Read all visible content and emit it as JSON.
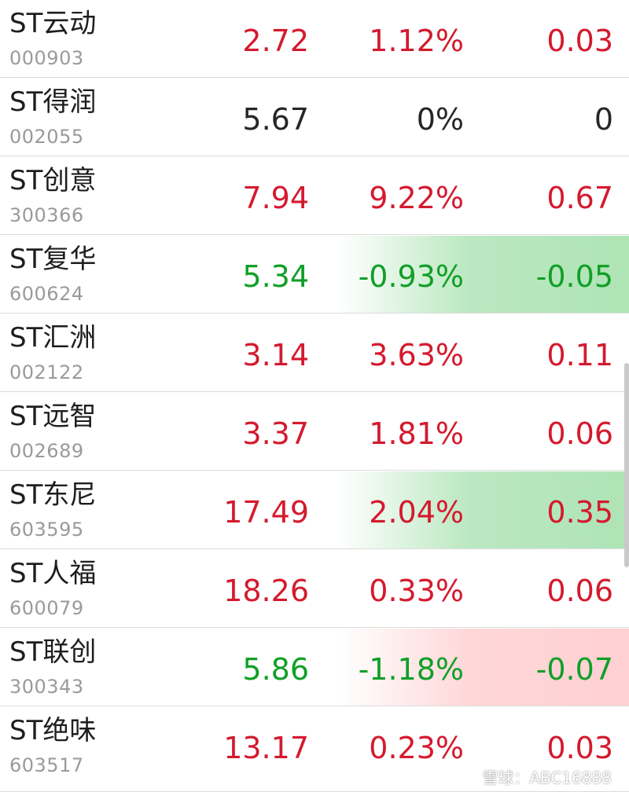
{
  "colors": {
    "up": "#d41a2e",
    "down": "#119f27",
    "flat": "#262626",
    "code": "#9a9a9a",
    "flash_green": "#aee3b6",
    "flash_red": "#ffd0d2"
  },
  "stocks": [
    {
      "name": "ST云动",
      "code": "000903",
      "price": "2.72",
      "pct": "1.12%",
      "chg": "0.03",
      "trend": "up",
      "flash": "none"
    },
    {
      "name": "ST得润",
      "code": "002055",
      "price": "5.67",
      "pct": "0%",
      "chg": "0",
      "trend": "flat",
      "flash": "none"
    },
    {
      "name": "ST创意",
      "code": "300366",
      "price": "7.94",
      "pct": "9.22%",
      "chg": "0.67",
      "trend": "up",
      "flash": "none"
    },
    {
      "name": "ST复华",
      "code": "600624",
      "price": "5.34",
      "pct": "-0.93%",
      "chg": "-0.05",
      "trend": "down",
      "flash": "green"
    },
    {
      "name": "ST汇洲",
      "code": "002122",
      "price": "3.14",
      "pct": "3.63%",
      "chg": "0.11",
      "trend": "up",
      "flash": "none"
    },
    {
      "name": "ST远智",
      "code": "002689",
      "price": "3.37",
      "pct": "1.81%",
      "chg": "0.06",
      "trend": "up",
      "flash": "none"
    },
    {
      "name": "ST东尼",
      "code": "603595",
      "price": "17.49",
      "pct": "2.04%",
      "chg": "0.35",
      "trend": "up",
      "flash": "green"
    },
    {
      "name": "ST人福",
      "code": "600079",
      "price": "18.26",
      "pct": "0.33%",
      "chg": "0.06",
      "trend": "up",
      "flash": "none"
    },
    {
      "name": "ST联创",
      "code": "300343",
      "price": "5.86",
      "pct": "-1.18%",
      "chg": "-0.07",
      "trend": "down",
      "flash": "red"
    },
    {
      "name": "ST绝味",
      "code": "603517",
      "price": "13.17",
      "pct": "0.23%",
      "chg": "0.03",
      "trend": "up",
      "flash": "none"
    }
  ],
  "watermark": {
    "text": "雪球：ABC16888",
    "icon": "snowball-logo-icon"
  }
}
